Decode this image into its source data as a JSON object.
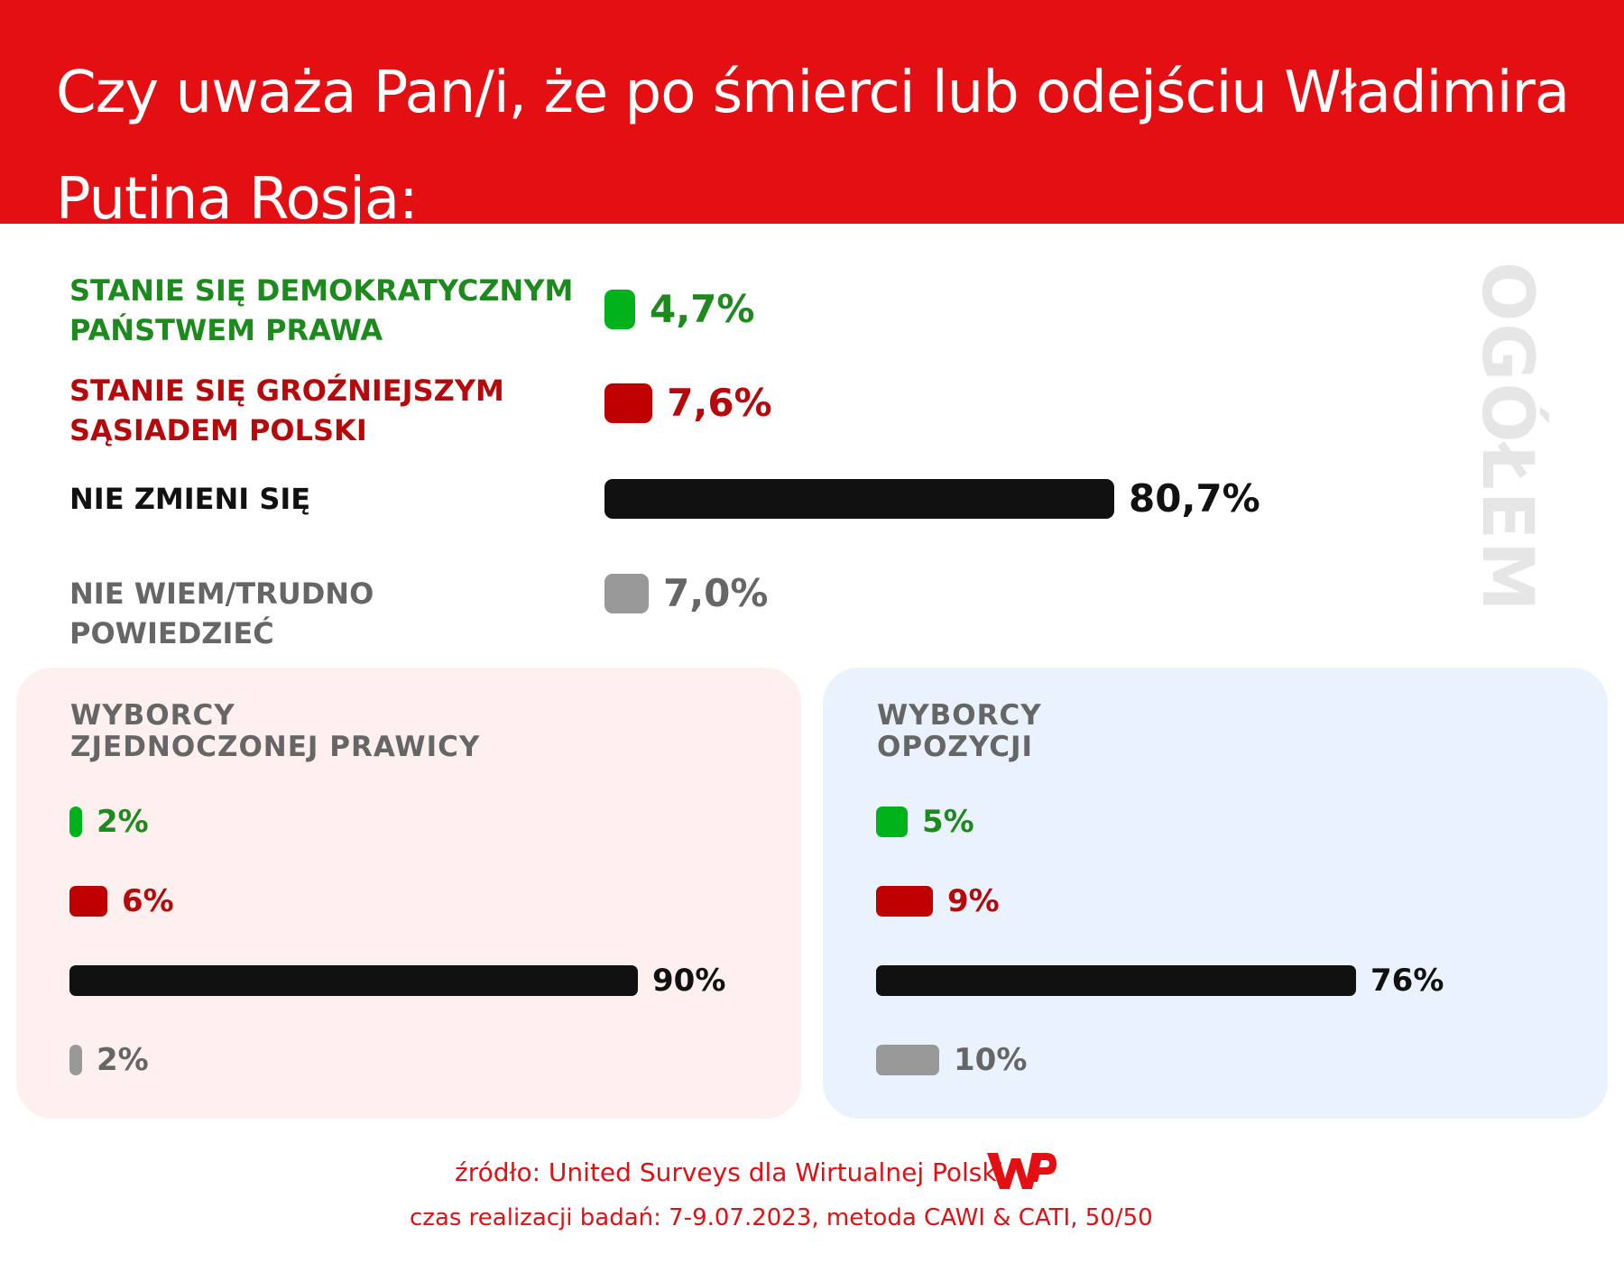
{
  "header": {
    "title": "Czy uważa Pan/i, że po śmierci lub odejściu Władimira Putina Rosja:"
  },
  "side_label": "OGÓŁEM",
  "colors": {
    "header_bg": "#e30f12",
    "democratic": "#00b31a",
    "dangerous": "#c00000",
    "no_change": "#111111",
    "dont_know": "#999999",
    "panel_right_bg": "#fdf0ef",
    "panel_left_bg": "#eaf3fd"
  },
  "chart_data": [
    {
      "type": "bar",
      "orientation": "horizontal",
      "label": "OGÓŁEM",
      "categories": [
        "STANIE SIĘ DEMOKRATYCZNYM PAŃSTWEM PRAWA",
        "STANIE SIĘ GROŹNIEJSZYM SĄSIADEM POLSKI",
        "NIE ZMIENI SIĘ",
        "NIE WIEM/TRUDNO POWIEDZIEĆ"
      ],
      "category_lines": [
        [
          "STANIE SIĘ DEMOKRATYCZNYM",
          "PAŃSTWEM PRAWA"
        ],
        [
          "STANIE SIĘ GROŹNIEJSZYM",
          "SĄSIADEM POLSKI"
        ],
        [
          "NIE ZMIENI SIĘ"
        ],
        [
          "NIE WIEM/TRUDNO POWIEDZIEĆ"
        ]
      ],
      "values": [
        4.7,
        7.6,
        80.7,
        7.0
      ],
      "value_labels": [
        "4,7%",
        "7,6%",
        "80,7%",
        "7,0%"
      ]
    },
    {
      "type": "bar",
      "orientation": "horizontal",
      "title_lines": [
        "WYBORCY",
        "ZJEDNOCZONEJ PRAWICY"
      ],
      "values": [
        2,
        6,
        90,
        2
      ],
      "value_labels": [
        "2%",
        "6%",
        "90%",
        "2%"
      ]
    },
    {
      "type": "bar",
      "orientation": "horizontal",
      "title_lines": [
        "WYBORCY",
        "OPOZYCJI"
      ],
      "values": [
        5,
        9,
        76,
        10
      ],
      "value_labels": [
        "5%",
        "9%",
        "76%",
        "10%"
      ]
    }
  ],
  "footer": {
    "source": "źródło: United Surveys dla Wirtualnej Polski",
    "method": "czas realizacji badań: 7-9.07.2023, metoda CAWI & CATI, 50/50",
    "logo": "wp-logo"
  }
}
